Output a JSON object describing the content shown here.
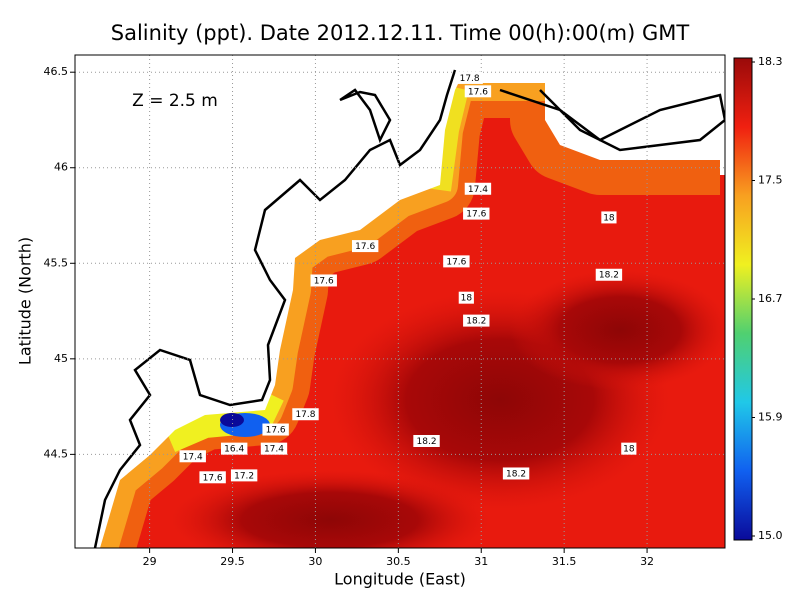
{
  "chart_data": {
    "type": "contour-map",
    "title": "Salinity (ppt). Date 2012.12.11. Time 00(h):00(m) GMT",
    "annotation": "Z = 2.5 m",
    "x_label": "Longitude (East)",
    "y_label": "Latitude (North)",
    "xlim": [
      28.55,
      32.47
    ],
    "ylim": [
      44.01,
      46.59
    ],
    "xticks": [
      29,
      29.5,
      30,
      30.5,
      31,
      31.5,
      32
    ],
    "yticks": [
      44.5,
      45,
      45.5,
      46,
      46.5
    ],
    "grid": true,
    "colorbar": {
      "colors": [
        "#0a0a9a",
        "#1060f0",
        "#20c8e8",
        "#50d070",
        "#f0f020",
        "#f8a020",
        "#f02010",
        "#9a0a0a"
      ],
      "ticks": [
        {
          "value": 15,
          "label": "15.0"
        },
        15.9,
        16.7,
        17.5,
        18.3
      ]
    },
    "contour_labels": [
      {
        "value": 17.8,
        "x": 30.93,
        "y": 46.47
      },
      {
        "value": 17.6,
        "x": 30.98,
        "y": 46.4
      },
      {
        "value": 17.4,
        "x": 30.98,
        "y": 45.89
      },
      {
        "value": 17.6,
        "x": 30.97,
        "y": 45.76
      },
      {
        "value": 18,
        "x": 31.77,
        "y": 45.74
      },
      {
        "value": 17.6,
        "x": 30.3,
        "y": 45.59
      },
      {
        "value": 17.6,
        "x": 30.85,
        "y": 45.51
      },
      {
        "value": 18.2,
        "x": 31.77,
        "y": 45.44
      },
      {
        "value": 17.6,
        "x": 30.05,
        "y": 45.41
      },
      {
        "value": 18,
        "x": 30.91,
        "y": 45.32
      },
      {
        "value": 18.2,
        "x": 30.97,
        "y": 45.2
      },
      {
        "value": 17.8,
        "x": 29.94,
        "y": 44.71
      },
      {
        "value": 17.6,
        "x": 29.76,
        "y": 44.63
      },
      {
        "value": 17.4,
        "x": 29.75,
        "y": 44.53
      },
      {
        "value": 18.2,
        "x": 30.67,
        "y": 44.57
      },
      {
        "value": 18,
        "x": 31.89,
        "y": 44.53
      },
      {
        "value": 16.4,
        "x": 29.51,
        "y": 44.53
      },
      {
        "value": 17.4,
        "x": 29.26,
        "y": 44.49
      },
      {
        "value": 18.2,
        "x": 31.21,
        "y": 44.4
      },
      {
        "value": 17.6,
        "x": 29.38,
        "y": 44.38
      },
      {
        "value": 17.2,
        "x": 29.57,
        "y": 44.39
      }
    ]
  }
}
